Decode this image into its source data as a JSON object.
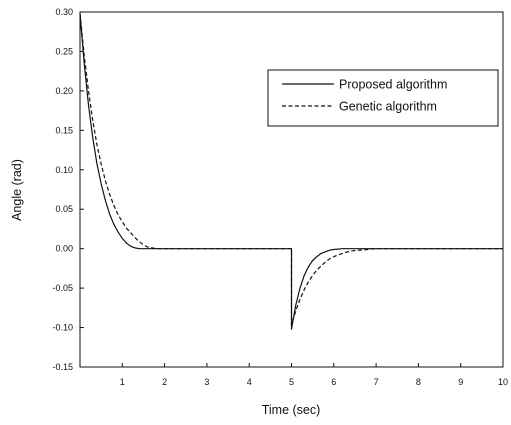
{
  "chart_data": {
    "type": "line",
    "title": "",
    "xlabel": "Time (sec)",
    "ylabel": "Angle (rad)",
    "xlim": [
      0,
      10
    ],
    "ylim": [
      -0.15,
      0.3
    ],
    "x_ticks": [
      1,
      2,
      3,
      4,
      5,
      6,
      7,
      8,
      9,
      10
    ],
    "x_tick_labels": [
      "1",
      "2",
      "3",
      "4",
      "5",
      "6",
      "7",
      "8",
      "9",
      "10"
    ],
    "y_ticks": [
      0.3,
      0.25,
      0.2,
      0.15,
      0.1,
      0.05,
      0.0,
      -0.05,
      -0.1,
      -0.15
    ],
    "y_tick_labels": [
      "0.30",
      "0.25",
      "0.20",
      "0.15",
      "0.10",
      "0.05",
      "0.00",
      "-0.05",
      "-0.10",
      "-0.15"
    ],
    "grid": false,
    "legend_position": "top-right",
    "series": [
      {
        "name": "Proposed algorithm",
        "style": "solid",
        "color": "#111111",
        "x": [
          0,
          0.1,
          0.2,
          0.3,
          0.4,
          0.5,
          0.6,
          0.7,
          0.8,
          0.9,
          1.0,
          1.1,
          1.2,
          1.3,
          1.4,
          1.5,
          1.7,
          2.0,
          3.0,
          4.0,
          5.0,
          5.0,
          5.1,
          5.2,
          5.3,
          5.4,
          5.5,
          5.6,
          5.7,
          5.8,
          5.9,
          6.0,
          6.2,
          6.4,
          7.0,
          8.0,
          9.0,
          10.0
        ],
        "y": [
          0.298,
          0.235,
          0.182,
          0.141,
          0.108,
          0.082,
          0.061,
          0.044,
          0.031,
          0.021,
          0.013,
          0.007,
          0.003,
          0.001,
          0.0,
          0.0,
          0.0,
          0.0,
          0.0,
          0.0,
          0.0,
          -0.102,
          -0.072,
          -0.05,
          -0.034,
          -0.023,
          -0.015,
          -0.01,
          -0.006,
          -0.004,
          -0.002,
          -0.001,
          0.0,
          0.0,
          0.0,
          0.0,
          0.0,
          0.0
        ]
      },
      {
        "name": "Genetic algorithm",
        "style": "dashed",
        "color": "#111111",
        "x": [
          0,
          0.1,
          0.2,
          0.3,
          0.4,
          0.5,
          0.6,
          0.7,
          0.8,
          0.9,
          1.0,
          1.1,
          1.2,
          1.3,
          1.4,
          1.5,
          1.6,
          1.7,
          1.8,
          2.0,
          3.0,
          4.0,
          5.0,
          5.0,
          5.1,
          5.2,
          5.3,
          5.4,
          5.5,
          5.6,
          5.7,
          5.8,
          5.9,
          6.0,
          6.2,
          6.4,
          6.6,
          6.8,
          7.0,
          8.0,
          9.0,
          10.0
        ],
        "y": [
          0.298,
          0.245,
          0.2,
          0.163,
          0.132,
          0.107,
          0.086,
          0.069,
          0.055,
          0.043,
          0.034,
          0.026,
          0.02,
          0.014,
          0.009,
          0.005,
          0.002,
          0.001,
          0.0,
          0.0,
          0.0,
          0.0,
          0.0,
          -0.097,
          -0.079,
          -0.064,
          -0.052,
          -0.042,
          -0.034,
          -0.027,
          -0.022,
          -0.017,
          -0.013,
          -0.01,
          -0.006,
          -0.003,
          -0.002,
          -0.001,
          0.0,
          0.0,
          0.0,
          0.0
        ]
      }
    ]
  }
}
